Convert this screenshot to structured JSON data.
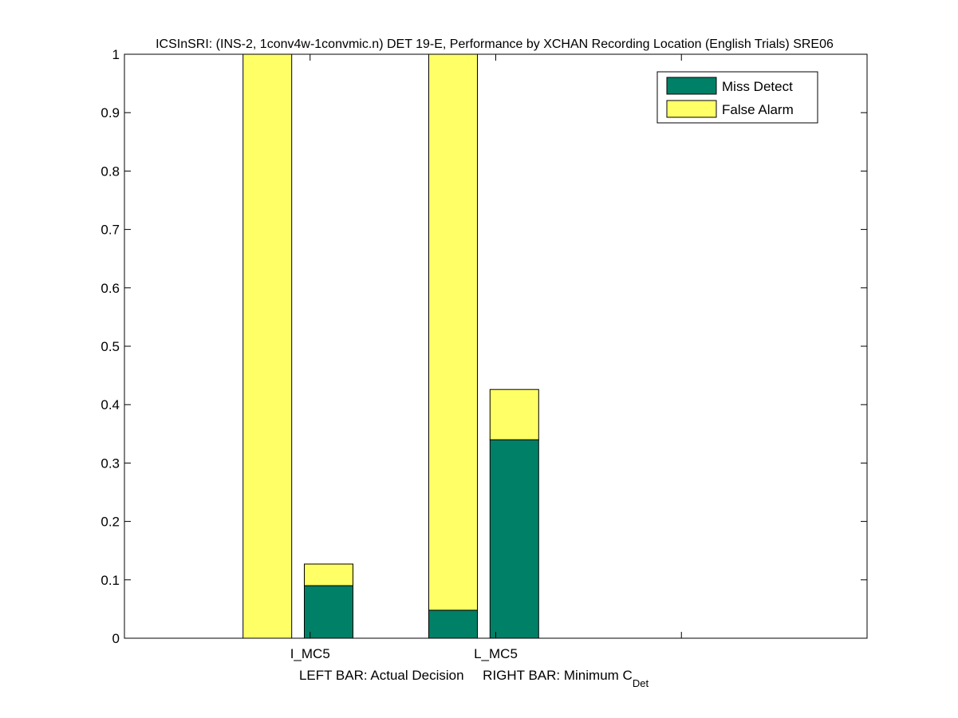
{
  "chart_data": {
    "type": "bar",
    "stacked": true,
    "title": "ICSInSRI: (INS-2, 1conv4w-1convmic.n) DET 19-E,  Performance by XCHAN Recording Location (English Trials) SRE06",
    "xlabel_parts": {
      "left": "LEFT BAR: Actual Decision",
      "right": "RIGHT BAR: Minimum C",
      "subscript": "Det"
    },
    "ylabel": "",
    "ylim": [
      0,
      1
    ],
    "yticks": [
      "0",
      "0.1",
      "0.2",
      "0.3",
      "0.4",
      "0.5",
      "0.6",
      "0.7",
      "0.8",
      "0.9",
      "1"
    ],
    "xlim": [
      0,
      4
    ],
    "categories": [
      "I_MC5",
      "L_MC5"
    ],
    "bar_order": [
      "Actual Decision",
      "Minimum CDet"
    ],
    "series": [
      {
        "name": "Miss Detect",
        "color": "#008066",
        "values": {
          "actual": [
            0.0,
            0.048
          ],
          "minimum": [
            0.09,
            0.34
          ]
        }
      },
      {
        "name": "False Alarm",
        "color": "#ffff66",
        "values": {
          "actual": [
            1.0,
            0.952
          ],
          "minimum": [
            0.037,
            0.086
          ]
        }
      }
    ],
    "legend_position": "top-right",
    "grid": false
  }
}
